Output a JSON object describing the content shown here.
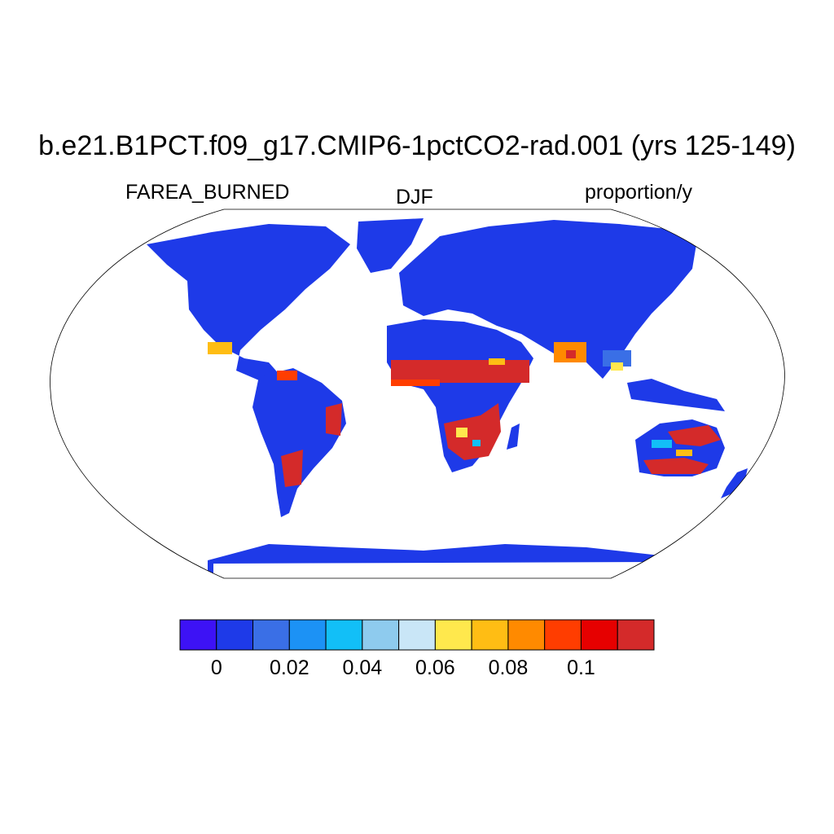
{
  "title": "b.e21.B1PCT.f09_g17.CMIP6-1pctCO2-rad.001 (yrs 125-149)",
  "left_label": "FAREA_BURNED",
  "center_label": "DJF",
  "right_label": "proportion/y",
  "colorbar": {
    "colors": [
      "#3d12f5",
      "#1e3ae8",
      "#3a6fe6",
      "#1c92f5",
      "#12bff7",
      "#8ecbee",
      "#c9e6f7",
      "#ffe84d",
      "#ffbd14",
      "#ff8a00",
      "#ff3d00",
      "#e60000",
      "#d42a2a"
    ],
    "tick_labels": [
      "0",
      "0.02",
      "0.04",
      "0.06",
      "0.08",
      "0.1"
    ]
  },
  "map": {
    "projection": "Robinson",
    "background_land_color": "#1e3ae8",
    "ocean_color": "#ffffff",
    "hotspot_colors": [
      "#d42a2a",
      "#ff3d00",
      "#ffbd14",
      "#ffe84d",
      "#12bff7",
      "#3a6fe6"
    ]
  }
}
